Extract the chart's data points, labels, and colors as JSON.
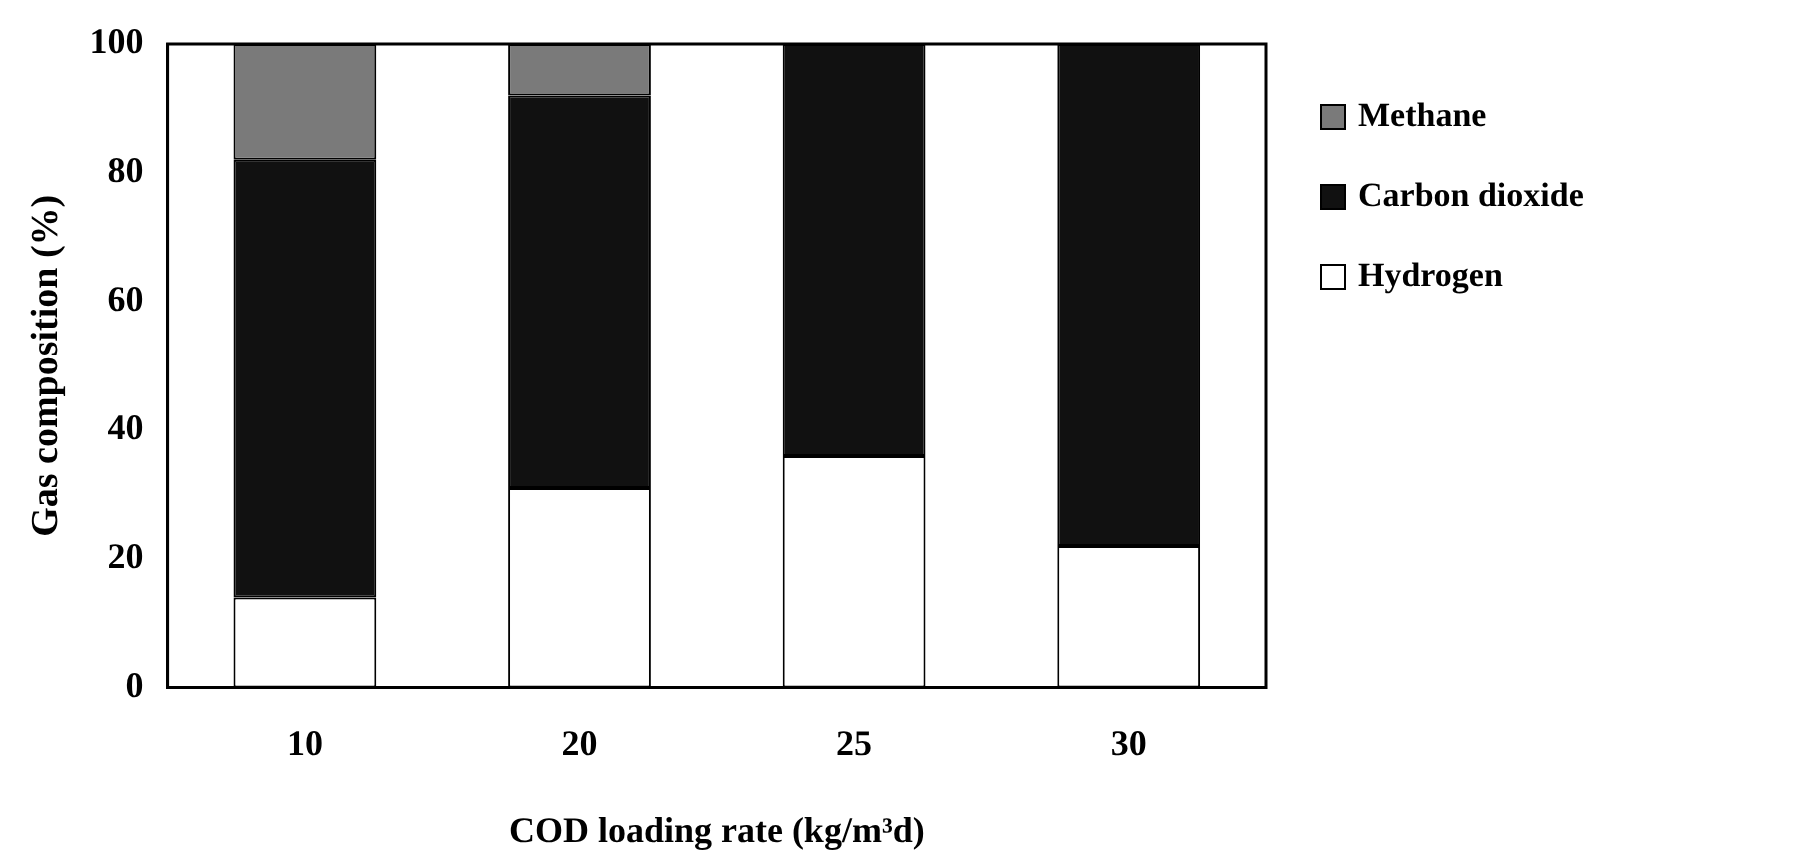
{
  "chart_data": {
    "type": "bar",
    "stacked": true,
    "xlabel": "COD loading rate (kg/m³d)",
    "ylabel": "Gas composition (%)",
    "categories": [
      "10",
      "20",
      "25",
      "30"
    ],
    "series": [
      {
        "name": "Hydrogen",
        "color": "#ffffff",
        "values": [
          14,
          31,
          36,
          22
        ]
      },
      {
        "name": "Carbon dioxide",
        "color": "#111111",
        "values": [
          68,
          61,
          64,
          78
        ]
      },
      {
        "name": "Methane",
        "color": "#7a7a7a",
        "values": [
          18,
          8,
          0,
          0
        ]
      }
    ],
    "ylim": [
      0,
      100
    ],
    "yticks": [
      0,
      20,
      40,
      60,
      80,
      100
    ],
    "grid": false,
    "legend": "right"
  }
}
